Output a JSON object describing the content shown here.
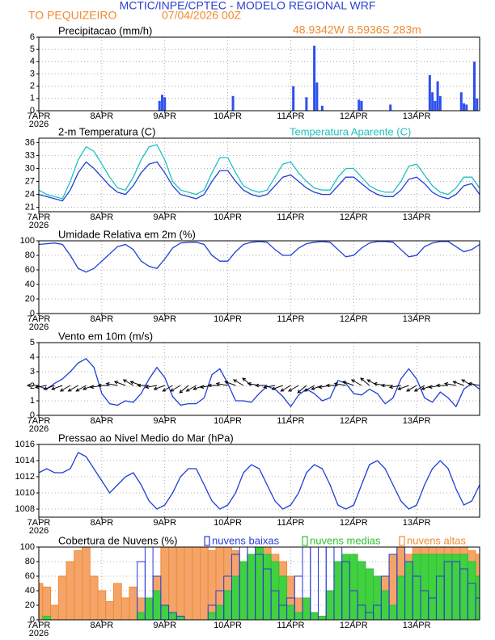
{
  "header": {
    "title": "MCTIC/INPE/CPTEC - MODELO REGIONAL WRF",
    "location": "TO PEQUIZEIRO",
    "datetime": "07/04/2026 00Z",
    "coordinates": "48.9342W 8.5936S 283m"
  },
  "chart_data": [
    {
      "type": "bar",
      "title": "Precipitacao (mm/h)",
      "color": "#2f4ff0",
      "x": [
        46,
        47,
        48,
        74,
        97,
        102,
        105,
        106,
        108,
        122,
        123,
        134,
        149,
        150,
        151,
        152,
        153,
        161,
        162,
        163,
        166,
        167
      ],
      "values": [
        0.8,
        1.3,
        1.1,
        1.2,
        2.0,
        1.1,
        5.3,
        2.3,
        0.4,
        0.9,
        0.8,
        0.5,
        2.9,
        1.5,
        0.8,
        2.4,
        1.2,
        1.5,
        0.6,
        0.5,
        4.0,
        1.0
      ],
      "xlim": [
        0,
        168
      ],
      "xticks": [
        {
          "value": 0,
          "label": "7APR"
        },
        {
          "value": 24,
          "label": "8APR"
        },
        {
          "value": 48,
          "label": "9APR"
        },
        {
          "value": 72,
          "label": "10APR"
        },
        {
          "value": 96,
          "label": "11APR"
        },
        {
          "value": 120,
          "label": "12APR"
        },
        {
          "value": 144,
          "label": "13APR"
        }
      ],
      "year_label": "2026",
      "ylim": [
        0,
        6
      ],
      "yticks": [
        0,
        1,
        2,
        3,
        4,
        5,
        6
      ],
      "grid": true
    },
    {
      "type": "line",
      "title": "2-m Temperatura (C)",
      "x": [
        0,
        3,
        6,
        9,
        12,
        15,
        18,
        21,
        24,
        27,
        30,
        33,
        36,
        39,
        42,
        45,
        48,
        51,
        54,
        57,
        60,
        63,
        66,
        69,
        72,
        75,
        78,
        81,
        84,
        87,
        90,
        93,
        96,
        99,
        102,
        105,
        108,
        111,
        114,
        117,
        120,
        123,
        126,
        129,
        132,
        135,
        138,
        141,
        144,
        147,
        150,
        153,
        156,
        159,
        162,
        165,
        168
      ],
      "series": [
        {
          "color": "#1f3fd8",
          "values": [
            24,
            23.5,
            23,
            22.5,
            25,
            29,
            31.5,
            30,
            28,
            26,
            24.5,
            24,
            26,
            29,
            31,
            31.5,
            29,
            26,
            24,
            23.5,
            23,
            24,
            27,
            29.5,
            29.5,
            27,
            25,
            24,
            23.5,
            24,
            26,
            28,
            28.5,
            27,
            25.5,
            24.5,
            24,
            24,
            26,
            28,
            28,
            26.5,
            25,
            24,
            23.5,
            23.5,
            25,
            27.5,
            28,
            26.5,
            24.5,
            23.5,
            23,
            24,
            26,
            26.5,
            24
          ]
        },
        {
          "name": "Temperatura Aparente (C)",
          "color": "#20c0c0",
          "values": [
            25,
            24,
            23.5,
            23,
            27,
            32,
            35,
            34,
            31,
            28,
            25.5,
            25,
            28,
            32,
            35,
            35.5,
            32,
            27,
            25,
            24.5,
            24,
            25,
            29,
            32.5,
            32.5,
            29,
            26,
            25,
            24.5,
            25,
            28,
            31,
            31.5,
            29,
            27,
            25.5,
            25,
            25,
            28,
            30,
            30,
            28,
            26,
            25,
            24.5,
            24.5,
            27,
            30.5,
            31,
            28.5,
            26,
            24.5,
            24,
            25.5,
            28,
            28,
            25.5
          ]
        }
      ],
      "xlim": [
        0,
        168
      ],
      "xticks": [
        {
          "value": 0,
          "label": "7APR"
        },
        {
          "value": 24,
          "label": "8APR"
        },
        {
          "value": 48,
          "label": "9APR"
        },
        {
          "value": 72,
          "label": "10APR"
        },
        {
          "value": 96,
          "label": "11APR"
        },
        {
          "value": 120,
          "label": "12APR"
        },
        {
          "value": 144,
          "label": "13APR"
        }
      ],
      "year_label": "2026",
      "ylim": [
        20,
        37
      ],
      "yticks": [
        21,
        24,
        27,
        30,
        33,
        36
      ],
      "grid": true
    },
    {
      "type": "line",
      "title": "Umidade Relativa em 2m (%)",
      "x": [
        0,
        3,
        6,
        9,
        12,
        15,
        18,
        21,
        24,
        27,
        30,
        33,
        36,
        39,
        42,
        45,
        48,
        51,
        54,
        57,
        60,
        63,
        66,
        69,
        72,
        75,
        78,
        81,
        84,
        87,
        90,
        93,
        96,
        99,
        102,
        105,
        108,
        111,
        114,
        117,
        120,
        123,
        126,
        129,
        132,
        135,
        138,
        141,
        144,
        147,
        150,
        153,
        156,
        159,
        162,
        165,
        168
      ],
      "series": [
        {
          "color": "#1f3fd8",
          "values": [
            95,
            96,
            97,
            95,
            80,
            62,
            57,
            62,
            72,
            82,
            92,
            95,
            88,
            72,
            65,
            62,
            75,
            90,
            97,
            98,
            98,
            95,
            80,
            72,
            72,
            85,
            95,
            98,
            99,
            98,
            88,
            80,
            80,
            90,
            96,
            98,
            99,
            98,
            88,
            78,
            80,
            90,
            97,
            99,
            99,
            98,
            88,
            78,
            80,
            92,
            97,
            99,
            99,
            92,
            85,
            88,
            95
          ]
        }
      ],
      "xlim": [
        0,
        168
      ],
      "xticks": [
        {
          "value": 0,
          "label": "7APR"
        },
        {
          "value": 24,
          "label": "8APR"
        },
        {
          "value": 48,
          "label": "9APR"
        },
        {
          "value": 72,
          "label": "10APR"
        },
        {
          "value": 96,
          "label": "11APR"
        },
        {
          "value": 120,
          "label": "12APR"
        },
        {
          "value": 144,
          "label": "13APR"
        }
      ],
      "year_label": "2026",
      "ylim": [
        0,
        100
      ],
      "yticks": [
        0,
        20,
        40,
        60,
        80,
        100
      ],
      "grid": true
    },
    {
      "type": "line",
      "title": "Vento em 10m (m/s)",
      "x": [
        0,
        3,
        6,
        9,
        12,
        15,
        18,
        21,
        24,
        27,
        30,
        33,
        36,
        39,
        42,
        45,
        48,
        51,
        54,
        57,
        60,
        63,
        66,
        69,
        72,
        75,
        78,
        81,
        84,
        87,
        90,
        93,
        96,
        99,
        102,
        105,
        108,
        111,
        114,
        117,
        120,
        123,
        126,
        129,
        132,
        135,
        138,
        141,
        144,
        147,
        150,
        153,
        156,
        159,
        162,
        165,
        168
      ],
      "series": [
        {
          "color": "#1f3fd8",
          "values": [
            2,
            1.8,
            2.2,
            2.5,
            3,
            3.6,
            3.9,
            3.3,
            1.5,
            0.8,
            0.7,
            1,
            0.9,
            1.5,
            2.5,
            3.3,
            2.6,
            1.3,
            0.7,
            0.8,
            0.8,
            1.2,
            2.8,
            3.2,
            2.2,
            1,
            1,
            0.9,
            1.5,
            2,
            1.8,
            1.3,
            0.6,
            1.4,
            1.8,
            1.5,
            1,
            1.2,
            2.4,
            2.2,
            1.5,
            1.4,
            1.8,
            1.5,
            0.8,
            1.2,
            2.5,
            3.2,
            2.5,
            1.2,
            0.9,
            1.6,
            1.2,
            0.6,
            1.8,
            2.2,
            1.8
          ]
        }
      ],
      "directions": [
        90,
        80,
        70,
        70,
        60,
        60,
        60,
        70,
        80,
        90,
        100,
        110,
        120,
        110,
        90,
        80,
        70,
        60,
        60,
        50,
        60,
        70,
        80,
        90,
        100,
        110,
        120,
        130,
        100,
        90,
        80,
        70,
        60,
        60,
        50,
        60,
        70,
        80,
        90,
        100,
        110,
        120,
        130,
        120,
        100,
        90,
        80,
        70,
        60,
        60,
        70,
        80,
        90,
        100,
        110,
        120,
        100
      ],
      "arrow_color": "#000000",
      "xlim": [
        0,
        168
      ],
      "xticks": [
        {
          "value": 0,
          "label": "7APR"
        },
        {
          "value": 24,
          "label": "8APR"
        },
        {
          "value": 48,
          "label": "9APR"
        },
        {
          "value": 72,
          "label": "10APR"
        },
        {
          "value": 96,
          "label": "11APR"
        },
        {
          "value": 120,
          "label": "12APR"
        },
        {
          "value": 144,
          "label": "13APR"
        }
      ],
      "year_label": "2026",
      "ylim": [
        0,
        5
      ],
      "yticks": [
        0,
        1,
        2,
        3,
        4,
        5
      ],
      "grid": true
    },
    {
      "type": "line",
      "title": "Pressao ao Nivel Medio do Mar (hPa)",
      "x": [
        0,
        3,
        6,
        9,
        12,
        15,
        18,
        21,
        24,
        27,
        30,
        33,
        36,
        39,
        42,
        45,
        48,
        51,
        54,
        57,
        60,
        63,
        66,
        69,
        72,
        75,
        78,
        81,
        84,
        87,
        90,
        93,
        96,
        99,
        102,
        105,
        108,
        111,
        114,
        117,
        120,
        123,
        126,
        129,
        132,
        135,
        138,
        141,
        144,
        147,
        150,
        153,
        156,
        159,
        162,
        165,
        168
      ],
      "series": [
        {
          "color": "#1f3fd8",
          "values": [
            1012.5,
            1013,
            1012.5,
            1012.5,
            1013,
            1015,
            1014.5,
            1013,
            1011.5,
            1010,
            1011,
            1012,
            1012.5,
            1011,
            1009,
            1008,
            1008.5,
            1010,
            1012,
            1013,
            1013,
            1011,
            1009,
            1008,
            1008.5,
            1010,
            1012.5,
            1013.5,
            1013,
            1011,
            1009,
            1008,
            1008.5,
            1010,
            1012.5,
            1013.5,
            1013,
            1011,
            1008.5,
            1008,
            1008.5,
            1011,
            1013.5,
            1014,
            1013,
            1011,
            1009,
            1008,
            1008.5,
            1011,
            1013,
            1014,
            1013,
            1010.5,
            1008.5,
            1009,
            1011
          ]
        }
      ],
      "xlim": [
        0,
        168
      ],
      "xticks": [
        {
          "value": 0,
          "label": "7APR"
        },
        {
          "value": 24,
          "label": "8APR"
        },
        {
          "value": 48,
          "label": "9APR"
        },
        {
          "value": 72,
          "label": "10APR"
        },
        {
          "value": 96,
          "label": "11APR"
        },
        {
          "value": 120,
          "label": "12APR"
        },
        {
          "value": 144,
          "label": "13APR"
        }
      ],
      "year_label": "2026",
      "ylim": [
        1007,
        1016
      ],
      "yticks": [
        1008,
        1010,
        1012,
        1014,
        1016
      ],
      "grid": true
    },
    {
      "type": "bar",
      "title": "Cobertura de Nuvens (%)",
      "x": [
        0,
        3,
        6,
        9,
        12,
        15,
        18,
        21,
        24,
        27,
        30,
        33,
        36,
        39,
        42,
        45,
        48,
        51,
        54,
        57,
        60,
        63,
        66,
        69,
        72,
        75,
        78,
        81,
        84,
        87,
        90,
        93,
        96,
        99,
        102,
        105,
        108,
        111,
        114,
        117,
        120,
        123,
        126,
        129,
        132,
        135,
        138,
        141,
        144,
        147,
        150,
        153,
        156,
        159,
        162,
        165,
        168
      ],
      "series": [
        {
          "name": "nuvens baixas",
          "color": "#2a3ad8",
          "fill": "none",
          "values": [
            0,
            0,
            0,
            0,
            0,
            0,
            0,
            0,
            0,
            0,
            0,
            0,
            0,
            80,
            100,
            60,
            20,
            10,
            5,
            0,
            0,
            0,
            20,
            40,
            60,
            90,
            100,
            100,
            90,
            70,
            40,
            20,
            30,
            60,
            100,
            100,
            100,
            100,
            100,
            80,
            40,
            20,
            10,
            20,
            60,
            90,
            100,
            80,
            60,
            40,
            30,
            60,
            80,
            80,
            70,
            50,
            30
          ]
        },
        {
          "name": "nuvens medias",
          "color": "#30c030",
          "fill": "#40d040",
          "values": [
            0,
            5,
            0,
            0,
            0,
            0,
            0,
            0,
            0,
            0,
            0,
            0,
            0,
            10,
            30,
            40,
            20,
            10,
            5,
            0,
            0,
            0,
            10,
            20,
            40,
            60,
            80,
            90,
            100,
            90,
            80,
            60,
            20,
            10,
            30,
            10,
            5,
            40,
            80,
            90,
            90,
            80,
            70,
            60,
            40,
            20,
            60,
            80,
            90,
            90,
            90,
            90,
            90,
            90,
            90,
            80,
            60
          ]
        },
        {
          "name": "nuvens altas",
          "color": "#f08a30",
          "fill": "#f4a468",
          "values": [
            50,
            45,
            20,
            60,
            80,
            95,
            100,
            60,
            40,
            25,
            50,
            30,
            45,
            30,
            20,
            60,
            100,
            100,
            100,
            100,
            100,
            100,
            95,
            100,
            100,
            95,
            80,
            60,
            90,
            100,
            90,
            80,
            60,
            30,
            20,
            10,
            5,
            10,
            20,
            30,
            50,
            60,
            40,
            20,
            60,
            90,
            100,
            90,
            100,
            100,
            100,
            100,
            100,
            100,
            100,
            95,
            90
          ]
        }
      ],
      "xlim": [
        0,
        168
      ],
      "xticks": [
        {
          "value": 0,
          "label": "7APR"
        },
        {
          "value": 24,
          "label": "8APR"
        },
        {
          "value": 48,
          "label": "9APR"
        },
        {
          "value": 72,
          "label": "10APR"
        },
        {
          "value": 96,
          "label": "11APR"
        },
        {
          "value": 120,
          "label": "12APR"
        },
        {
          "value": 144,
          "label": "13APR"
        }
      ],
      "year_label": "2026",
      "ylim": [
        0,
        100
      ],
      "yticks": [
        0,
        20,
        40,
        60,
        80,
        100
      ],
      "grid": true
    }
  ]
}
